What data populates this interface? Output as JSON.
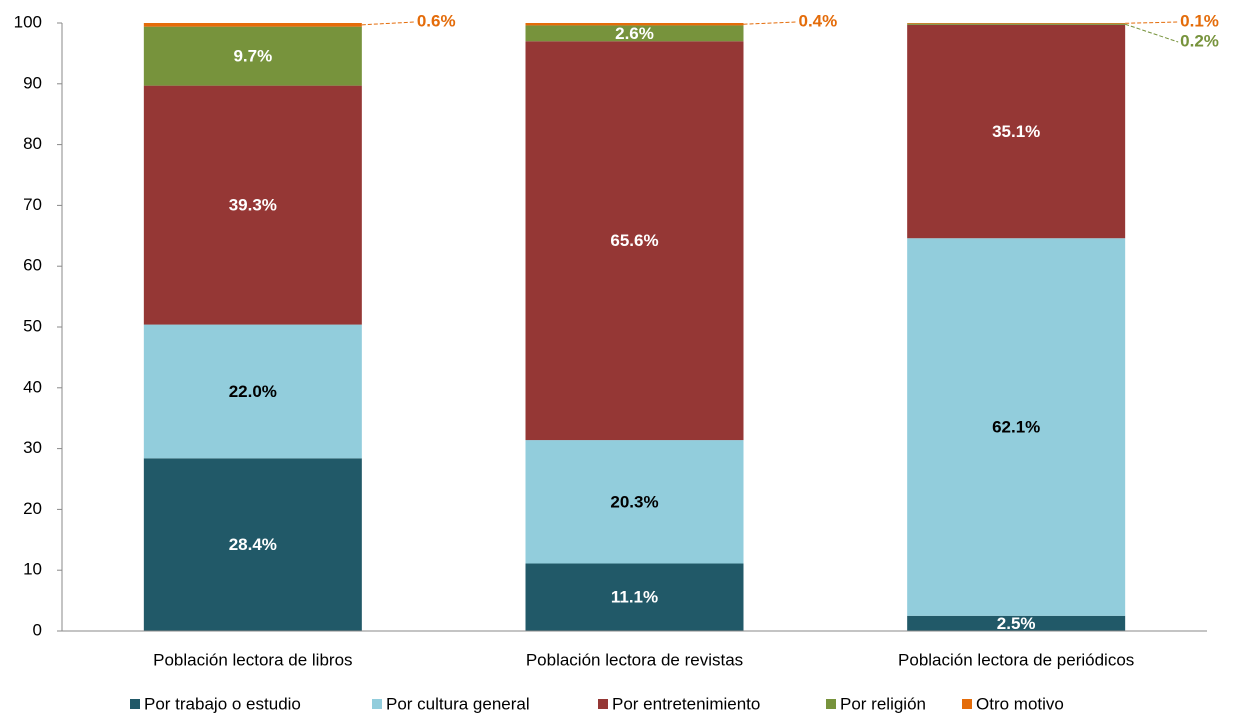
{
  "chart_data": {
    "type": "stacked_bar",
    "categories": [
      "Población lectora de libros",
      "Población lectora de revistas",
      "Población lectora de periódicos"
    ],
    "series": [
      {
        "name": "Por trabajo o estudio",
        "color": "#215968",
        "values": [
          28.4,
          11.1,
          2.5
        ],
        "value_labels": [
          "28.4%",
          "11.1%",
          "2.5%"
        ]
      },
      {
        "name": "Por cultura general",
        "color": "#92cddc",
        "values": [
          22.0,
          20.3,
          62.1
        ],
        "value_labels": [
          "22.0%",
          "20.3%",
          "62.1%"
        ]
      },
      {
        "name": "Por entretenimiento",
        "color": "#953735",
        "values": [
          39.3,
          65.6,
          35.1
        ],
        "value_labels": [
          "39.3%",
          "65.6%",
          "35.1%"
        ]
      },
      {
        "name": "Por religión",
        "color": "#77933c",
        "values": [
          9.7,
          2.6,
          0.2
        ],
        "value_labels": [
          "9.7%",
          "2.6%",
          "0.2%"
        ]
      },
      {
        "name": "Otro motivo",
        "color": "#e46c0a",
        "values": [
          0.6,
          0.4,
          0.1
        ],
        "value_labels": [
          "0.6%",
          "0.4%",
          "0.1%"
        ]
      }
    ],
    "ylim": [
      0,
      100
    ],
    "yticks": [
      0,
      10,
      20,
      30,
      40,
      50,
      60,
      70,
      80,
      90,
      100
    ],
    "grid": false,
    "legend": "bottom"
  }
}
